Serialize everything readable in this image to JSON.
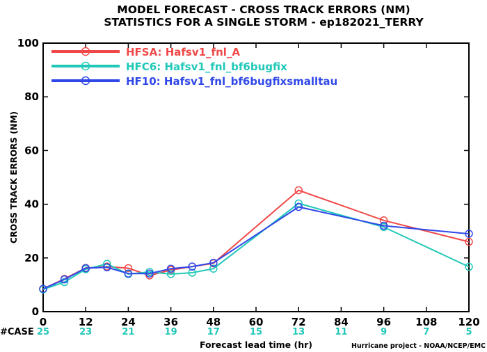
{
  "title_line1": "MODEL FORECAST - CROSS TRACK ERRORS (NM)",
  "title_line2": "STATISTICS FOR A SINGLE STORM - ep182021_TERRY",
  "credit": "Hurricane project - NOAA/NCEP/EMC",
  "case_label": "#CASE",
  "chart_data": {
    "type": "line",
    "title": "MODEL FORECAST - CROSS TRACK ERRORS (NM)",
    "subtitle": "STATISTICS FOR A SINGLE STORM - ep182021_TERRY",
    "xlabel": "Forecast lead time (hr)",
    "ylabel": "CROSS TRACK ERRORS (NM)",
    "xlim": [
      0,
      120
    ],
    "ylim": [
      0,
      100
    ],
    "xticks": [
      0,
      12,
      24,
      36,
      48,
      60,
      72,
      84,
      96,
      108,
      120
    ],
    "yticks": [
      0,
      20,
      40,
      60,
      80,
      100
    ],
    "legend_position": "top-left",
    "grid": false,
    "x": [
      0,
      6,
      12,
      18,
      24,
      30,
      36,
      42,
      48,
      72,
      96,
      120
    ],
    "series": [
      {
        "name": "HFSA: Hafsv1_fnl_A",
        "color": "#f04848",
        "values": [
          8.5,
          12.2,
          16.3,
          16.8,
          16.2,
          13.5,
          15.5,
          16.8,
          18.0,
          45.2,
          34.0,
          26.0
        ]
      },
      {
        "name": "HFC6: Hafsv1_fnl_bf6bugfix",
        "color": "#20c8b8",
        "values": [
          8.3,
          11.0,
          15.8,
          17.8,
          14.0,
          14.8,
          14.0,
          14.5,
          16.0,
          40.3,
          31.5,
          16.7
        ]
      },
      {
        "name": "HF10: Hafsv1_fnl_bf6bugfixsmalltau",
        "color": "#3048e8",
        "values": [
          8.5,
          12.0,
          16.2,
          16.5,
          14.2,
          14.2,
          16.0,
          16.8,
          18.2,
          39.0,
          32.0,
          29.0
        ]
      }
    ],
    "cases": {
      "x": [
        0,
        12,
        24,
        36,
        48,
        60,
        72,
        84,
        96,
        108,
        120
      ],
      "values": [
        25,
        23,
        21,
        19,
        17,
        15,
        13,
        11,
        9,
        7,
        5
      ],
      "color": "#20c8b8"
    }
  }
}
